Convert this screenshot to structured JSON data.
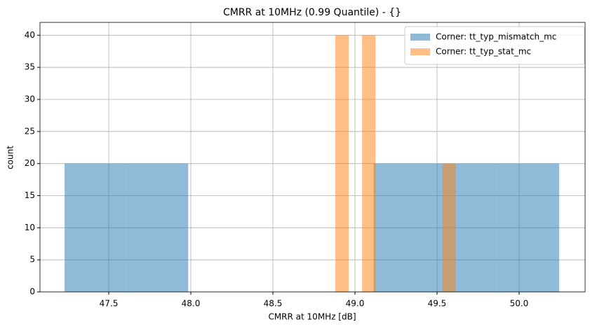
{
  "chart_data": {
    "type": "histogram",
    "title": "CMRR at 10MHz (0.99 Quantile) - {}",
    "x_label": "CMRR at 10MHz [dB]",
    "y_label": "count",
    "series": [
      {
        "name": "Corner: tt_typ_mismatch_mc",
        "color": "#1f77b4",
        "opacity": 0.5,
        "bins": [
          47.231,
          47.608,
          47.984,
          48.361,
          48.737,
          49.114,
          49.491,
          49.867,
          50.244
        ],
        "values": [
          20,
          20,
          0,
          0,
          0,
          20,
          20,
          20
        ]
      },
      {
        "name": "Corner: tt_typ_stat_mc",
        "color": "#ff7f0e",
        "opacity": 0.5,
        "bins": [
          48.88,
          48.962,
          49.043,
          49.125,
          49.207,
          49.288,
          49.37,
          49.452,
          49.533,
          49.615
        ],
        "values": [
          40,
          0,
          40,
          0,
          0,
          0,
          0,
          0,
          20
        ]
      }
    ],
    "xlim": [
      47.081,
      50.402
    ],
    "xticks": [
      47.5,
      {
        "value": 48,
        "label": "48.0"
      },
      48.5,
      {
        "value": 49,
        "label": "49.0"
      },
      49.5,
      {
        "value": 50,
        "label": "50.0"
      }
    ],
    "ylim": [
      0,
      42
    ],
    "yticks": [
      0,
      5,
      10,
      15,
      20,
      25,
      30,
      35,
      40
    ],
    "grid": true,
    "legend": "upper right"
  }
}
